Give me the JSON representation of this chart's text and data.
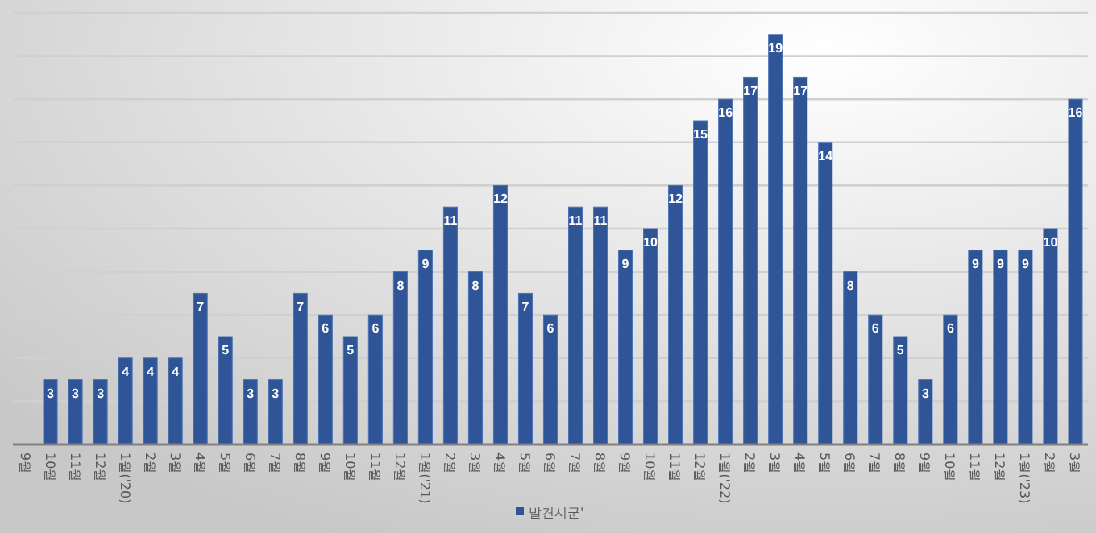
{
  "chart_data": {
    "type": "bar",
    "categories": [
      "9월",
      "10월",
      "11월",
      "12월",
      "1월('20)",
      "2월",
      "3월",
      "4월",
      "5월",
      "6월",
      "7월",
      "8월",
      "9월",
      "10월",
      "11월",
      "12월",
      "1월('21)",
      "2월",
      "3월",
      "4월",
      "5월",
      "6월",
      "7월",
      "8월",
      "9월",
      "10월",
      "11월",
      "12월",
      "1월('22)",
      "2월",
      "3월",
      "4월",
      "5월",
      "6월",
      "7월",
      "8월",
      "9월",
      "10월",
      "11월",
      "12월",
      "1월('23)",
      "2월",
      "3월"
    ],
    "series": [
      {
        "name": "발견시군'",
        "color": "#2f5597",
        "values": [
          null,
          3,
          3,
          3,
          4,
          4,
          4,
          7,
          5,
          3,
          3,
          7,
          6,
          5,
          6,
          8,
          9,
          11,
          8,
          12,
          7,
          6,
          11,
          11,
          9,
          10,
          12,
          15,
          16,
          17,
          19,
          17,
          14,
          8,
          6,
          5,
          3,
          6,
          9,
          9,
          9,
          10,
          16
        ]
      }
    ],
    "ylim": [
      0,
      20
    ],
    "yticks": [
      {
        "value": 0,
        "label": null
      },
      {
        "value": 2,
        "label": null
      },
      {
        "value": 4,
        "label": null
      },
      {
        "value": 6,
        "label": null
      },
      {
        "value": 8,
        "label": null
      },
      {
        "value": 10,
        "label": null
      },
      {
        "value": 12,
        "label": null
      },
      {
        "value": 14,
        "label": null
      },
      {
        "value": 16,
        "label": null
      },
      {
        "value": 18,
        "label": null
      },
      {
        "value": 20,
        "label": null
      }
    ],
    "tick_labels": "x",
    "grid": "y",
    "legend": "bottom",
    "data_labels": true
  }
}
